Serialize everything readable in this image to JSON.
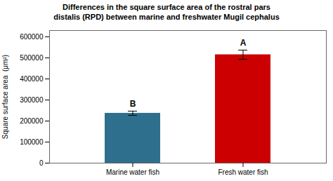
{
  "chart_data": {
    "type": "bar",
    "title": "Differences in the square surface area of the rostral pars\ndistalis (RPD) between marine and freshwater Mugil cephalus",
    "categories": [
      "Marine water fish",
      "Fresh water fish"
    ],
    "values": [
      237000,
      515000
    ],
    "errors": [
      10000,
      22000
    ],
    "colors": [
      "#2e6f8e",
      "#cc0000"
    ],
    "annotations": [
      "B",
      "A"
    ],
    "ylabel": "Square surface area  (μm²)",
    "ylim": [
      0,
      630000
    ],
    "yticks": [
      0,
      100000,
      200000,
      300000,
      400000,
      500000,
      600000
    ],
    "grid": false
  }
}
